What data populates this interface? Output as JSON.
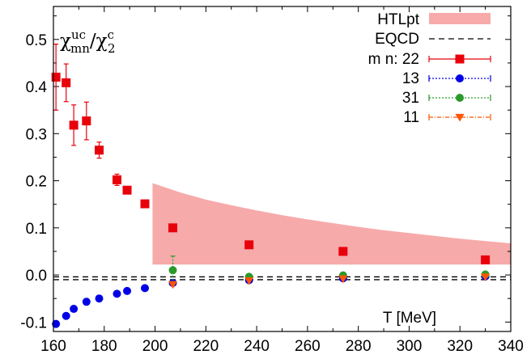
{
  "chart_data": {
    "type": "scatter",
    "title": "",
    "xlabel": "T [MeV]",
    "ylabel": {
      "base1": "χ",
      "sup1": "uc",
      "sub1": "mn",
      "slash": "/",
      "base2": "χ",
      "sup2": "c",
      "sub2": "2"
    },
    "xlim": [
      160,
      340
    ],
    "ylim": [
      -0.12,
      0.57
    ],
    "xticks": [
      160,
      180,
      200,
      220,
      240,
      260,
      280,
      300,
      320,
      340
    ],
    "xtick_labels": [
      "160",
      "180",
      "200",
      "220",
      "240",
      "260",
      "280",
      "300",
      "320",
      "340"
    ],
    "yticks": [
      -0.1,
      0.0,
      0.1,
      0.2,
      0.3,
      0.4,
      0.5
    ],
    "ytick_labels": [
      "-0.1",
      "0.0",
      "0.1",
      "0.2",
      "0.3",
      "0.4",
      "0.5"
    ],
    "legend_position": "top-right",
    "legend_prefix": "m n:",
    "htl_band": {
      "name": "HTLpt",
      "color": "#f7aaaa",
      "x": [
        199,
        210,
        220,
        230,
        240,
        250,
        260,
        270,
        280,
        290,
        300,
        310,
        320,
        330,
        340
      ],
      "upper": [
        0.195,
        0.175,
        0.16,
        0.148,
        0.137,
        0.127,
        0.118,
        0.11,
        0.102,
        0.095,
        0.089,
        0.083,
        0.077,
        0.072,
        0.067
      ],
      "lower": [
        0.022,
        0.022,
        0.022,
        0.022,
        0.022,
        0.022,
        0.022,
        0.022,
        0.022,
        0.022,
        0.022,
        0.022,
        0.022,
        0.022,
        0.022
      ]
    },
    "eqcd": {
      "name": "EQCD",
      "color": "#000000",
      "y_values": [
        -0.004,
        -0.01
      ]
    },
    "series": [
      {
        "name": "22",
        "color": "#e8000b",
        "marker": "square",
        "points": [
          {
            "x": 161,
            "y": 0.42,
            "err": 0.07
          },
          {
            "x": 165,
            "y": 0.408,
            "err": 0.04
          },
          {
            "x": 168,
            "y": 0.318,
            "err": 0.043
          },
          {
            "x": 173,
            "y": 0.327,
            "err": 0.04
          },
          {
            "x": 178,
            "y": 0.265,
            "err": 0.017
          },
          {
            "x": 185,
            "y": 0.202,
            "err": 0.012
          },
          {
            "x": 189,
            "y": 0.18,
            "err": 0.0
          },
          {
            "x": 196,
            "y": 0.151,
            "err": 0.0
          },
          {
            "x": 207,
            "y": 0.1,
            "err": 0.0
          },
          {
            "x": 237,
            "y": 0.064,
            "err": 0.0
          },
          {
            "x": 274,
            "y": 0.05,
            "err": 0.0
          },
          {
            "x": 330,
            "y": 0.032,
            "err": 0.0
          }
        ]
      },
      {
        "name": "13",
        "color": "#0000e6",
        "marker": "circle",
        "points": [
          {
            "x": 161,
            "y": -0.104
          },
          {
            "x": 165,
            "y": -0.087
          },
          {
            "x": 168,
            "y": -0.072
          },
          {
            "x": 173,
            "y": -0.057
          },
          {
            "x": 178,
            "y": -0.05
          },
          {
            "x": 185,
            "y": -0.04
          },
          {
            "x": 189,
            "y": -0.034
          },
          {
            "x": 196,
            "y": -0.028
          },
          {
            "x": 207,
            "y": -0.017
          },
          {
            "x": 237,
            "y": -0.011
          },
          {
            "x": 274,
            "y": -0.007
          },
          {
            "x": 330,
            "y": -0.003
          }
        ]
      },
      {
        "name": "31",
        "color": "#2a9a2a",
        "marker": "circle",
        "points": [
          {
            "x": 207,
            "y": 0.01,
            "err": 0.03
          },
          {
            "x": 237,
            "y": -0.004,
            "err": 0.0
          },
          {
            "x": 274,
            "y": -0.001,
            "err": 0.0
          },
          {
            "x": 330,
            "y": 0.001,
            "err": 0.0
          }
        ]
      },
      {
        "name": "11",
        "color": "#ff5500",
        "marker": "triangle-down",
        "points": [
          {
            "x": 207,
            "y": -0.02
          },
          {
            "x": 237,
            "y": -0.012
          },
          {
            "x": 274,
            "y": -0.008
          },
          {
            "x": 330,
            "y": -0.004
          }
        ]
      }
    ]
  }
}
